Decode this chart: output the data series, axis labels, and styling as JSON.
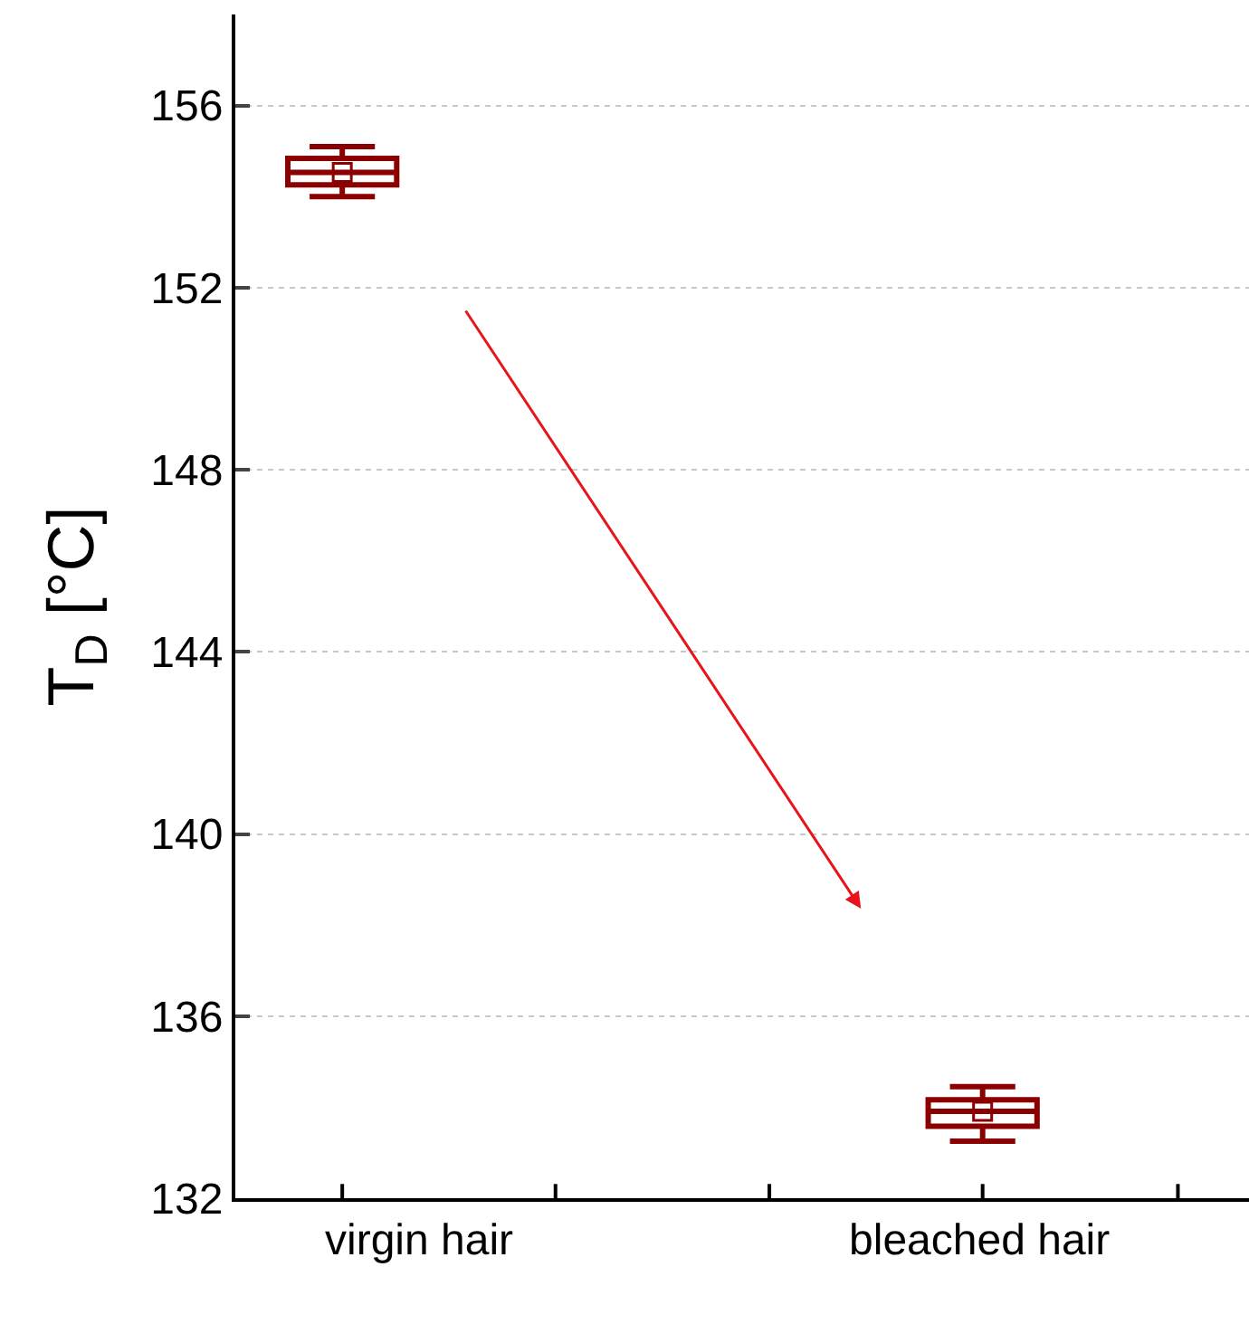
{
  "chart_data": {
    "type": "box",
    "ylabel": "T$_{D}$ [°C]",
    "categories": [
      "virgin hair",
      "bleached hair"
    ],
    "series": [
      {
        "color": "#8b0000",
        "boxes": [
          {
            "low": 154.0,
            "q1": 154.26,
            "median": 154.53,
            "q3": 154.84,
            "high": 155.1,
            "mean": 154.53
          },
          {
            "low": 133.25,
            "q1": 133.58,
            "median": 133.91,
            "q3": 134.16,
            "high": 134.45,
            "mean": 133.91
          }
        ]
      }
    ],
    "ylim": [
      132,
      158
    ],
    "yticks": [
      132,
      136,
      140,
      144,
      148,
      152,
      156
    ],
    "grid": "y",
    "marker": "square"
  }
}
